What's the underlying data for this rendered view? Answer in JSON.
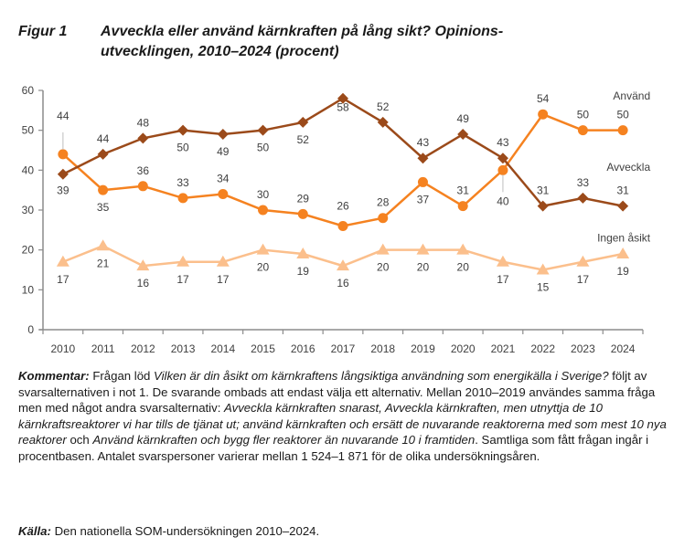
{
  "header": {
    "figure_label": "Figur 1",
    "title": "Avveckla eller använd kärnkraften på lång sikt? Opinions-utvecklingen, 2010–2024 (procent)",
    "title_line1": "Avveckla eller använd kärnkraften på lång sikt? Opinions-",
    "title_line2": "utvecklingen, 2010–2024 (procent)"
  },
  "chart_data": {
    "type": "line",
    "title": "Avveckla eller använd kärnkraften på lång sikt? Opinionsutvecklingen, 2010–2024 (procent)",
    "xlabel": "",
    "ylabel": "",
    "ylim": [
      0,
      60
    ],
    "yticks": [
      "0",
      "10",
      "20",
      "30",
      "40",
      "50",
      "60"
    ],
    "categories": [
      "2010",
      "2011",
      "2012",
      "2013",
      "2014",
      "2015",
      "2016",
      "2017",
      "2018",
      "2019",
      "2020",
      "2021",
      "2022",
      "2023",
      "2024"
    ],
    "grid": false,
    "legend": "inline-right",
    "series": [
      {
        "name": "Använd",
        "color": "#f58220",
        "marker": "circle",
        "values": [
          44,
          35,
          36,
          33,
          34,
          30,
          29,
          26,
          28,
          37,
          31,
          40,
          54,
          50,
          50
        ]
      },
      {
        "name": "Avveckla",
        "color": "#9b4a1a",
        "marker": "diamond",
        "values": [
          39,
          44,
          48,
          50,
          49,
          50,
          52,
          58,
          52,
          43,
          49,
          43,
          31,
          33,
          31
        ]
      },
      {
        "name": "Ingen åsikt",
        "color": "#fbbf8c",
        "marker": "triangle",
        "values": [
          17,
          21,
          16,
          17,
          17,
          20,
          19,
          16,
          20,
          20,
          20,
          17,
          15,
          17,
          19
        ]
      }
    ]
  },
  "note": {
    "label": "Kommentar:",
    "t1": " Frågan löd ",
    "q1": "Vilken är din åsikt om kärnkraftens långsiktiga användning som energikälla i Sverige?",
    "t2": " följt av svarsalternativen i not 1. De svarande ombads att endast välja ett alternativ. Mellan 2010–2019 användes samma fråga men med något andra svarsalternativ: ",
    "q2": "Avveckla kärnkraften snarast, Avveckla kärnkraften, men utnyttja de 10 kärnkraftsreaktorer vi har tills de tjänat ut; använd kärnkraften och ersätt de nuvarande reaktorerna med som mest 10 nya reaktorer",
    "t3": " och ",
    "q3": "Använd kärnkraften och bygg fler reaktorer än nuvarande 10 i framtiden",
    "t4": ". Samtliga som fått frågan ingår i procentbasen. Antalet svarspersoner varierar mellan 1 524–1 871 för de olika undersökningsåren."
  },
  "source": {
    "label": "Källa:",
    "text": " Den nationella SOM-undersökningen 2010–2024."
  }
}
